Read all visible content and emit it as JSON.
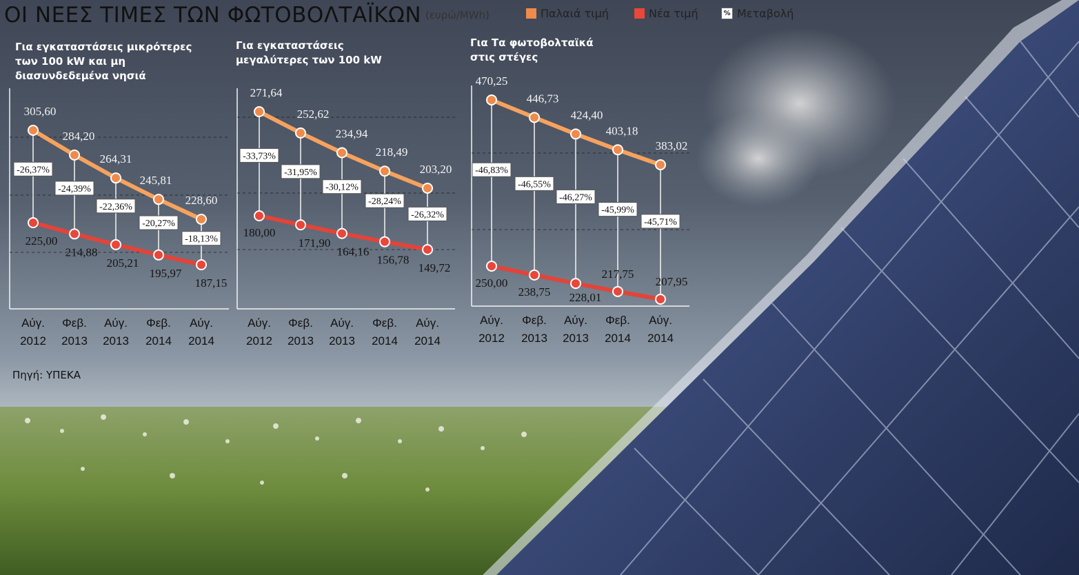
{
  "title": "ΟΙ ΝΕΕΣ ΤΙΜΕΣ ΤΩΝ ΦΩΤΟΒΟΛΤΑΪΚΩΝ",
  "unit": "(ευρώ/MWh)",
  "legend": [
    {
      "label": "Παλαιά τιμή",
      "color": "#f08a4b",
      "kind": "swatch"
    },
    {
      "label": "Νέα τιμή",
      "color": "#e8473a",
      "kind": "swatch"
    },
    {
      "label": "Μεταβολή",
      "symbol": "%",
      "kind": "pct"
    }
  ],
  "source": "Πηγή: ΥΠΕΚΑ",
  "colors": {
    "old": "#f08a4b",
    "new": "#e8473a",
    "old_line": "#f6a25e",
    "new_line": "#e2443a"
  },
  "chart_data": [
    {
      "type": "line",
      "title": "Για εγκαταστάσεις μικρότερες\nτων 100 kW και μη\nδιασυνδεδεμένα νησιά",
      "categories": [
        [
          "Αύγ.",
          "2012"
        ],
        [
          "Φεβ.",
          "2013"
        ],
        [
          "Αύγ.",
          "2013"
        ],
        [
          "Φεβ.",
          "2014"
        ],
        [
          "Αύγ.",
          "2014"
        ]
      ],
      "series": [
        {
          "name": "Παλαιά τιμή",
          "values": [
            305.6,
            284.2,
            264.31,
            245.81,
            228.6
          ],
          "labels": [
            "305,60",
            "284,20",
            "264,31",
            "245,81",
            "228,60"
          ]
        },
        {
          "name": "Νέα τιμή",
          "values": [
            225.0,
            214.88,
            205.21,
            195.97,
            187.15
          ],
          "labels": [
            "225,00",
            "214,88",
            "205,21",
            "195,97",
            "187,15"
          ]
        }
      ],
      "changes": [
        "-26,37%",
        "-24,39%",
        "-22,36%",
        "-20,27%",
        "-18,13%"
      ]
    },
    {
      "type": "line",
      "title": "Για εγκαταστάσεις\nμεγαλύτερες των 100 kW",
      "categories": [
        [
          "Αύγ.",
          "2012"
        ],
        [
          "Φεβ.",
          "2013"
        ],
        [
          "Αύγ.",
          "2013"
        ],
        [
          "Φεβ.",
          "2014"
        ],
        [
          "Αύγ.",
          "2014"
        ]
      ],
      "series": [
        {
          "name": "Παλαιά τιμή",
          "values": [
            271.64,
            252.62,
            234.94,
            218.49,
            203.2
          ],
          "labels": [
            "271,64",
            "252,62",
            "234,94",
            "218,49",
            "203,20"
          ]
        },
        {
          "name": "Νέα τιμή",
          "values": [
            180.0,
            171.9,
            164.16,
            156.78,
            149.72
          ],
          "labels": [
            "180,00",
            "171,90",
            "164,16",
            "156,78",
            "149,72"
          ]
        }
      ],
      "changes": [
        "-33,73%",
        "-31,95%",
        "-30,12%",
        "-28,24%",
        "-26,32%"
      ]
    },
    {
      "type": "line",
      "title": "Για Τα φωτοβολταϊκά\nστις στέγες",
      "categories": [
        [
          "Αύγ.",
          "2012"
        ],
        [
          "Φεβ.",
          "2013"
        ],
        [
          "Αύγ.",
          "2013"
        ],
        [
          "Φεβ.",
          "2014"
        ],
        [
          "Αύγ.",
          "2014"
        ]
      ],
      "series": [
        {
          "name": "Παλαιά τιμή",
          "values": [
            470.25,
            446.73,
            424.4,
            403.18,
            383.02
          ],
          "labels": [
            "470,25",
            "446,73",
            "424,40",
            "403,18",
            "383,02"
          ]
        },
        {
          "name": "Νέα τιμή",
          "values": [
            250.0,
            238.75,
            228.01,
            217.75,
            207.95
          ],
          "labels": [
            "250,00",
            "238,75",
            "228,01",
            "217,75",
            "207,95"
          ]
        }
      ],
      "changes": [
        "-46,83%",
        "-46,55%",
        "-46,27%",
        "-45,99%",
        "-45,71%"
      ]
    }
  ]
}
